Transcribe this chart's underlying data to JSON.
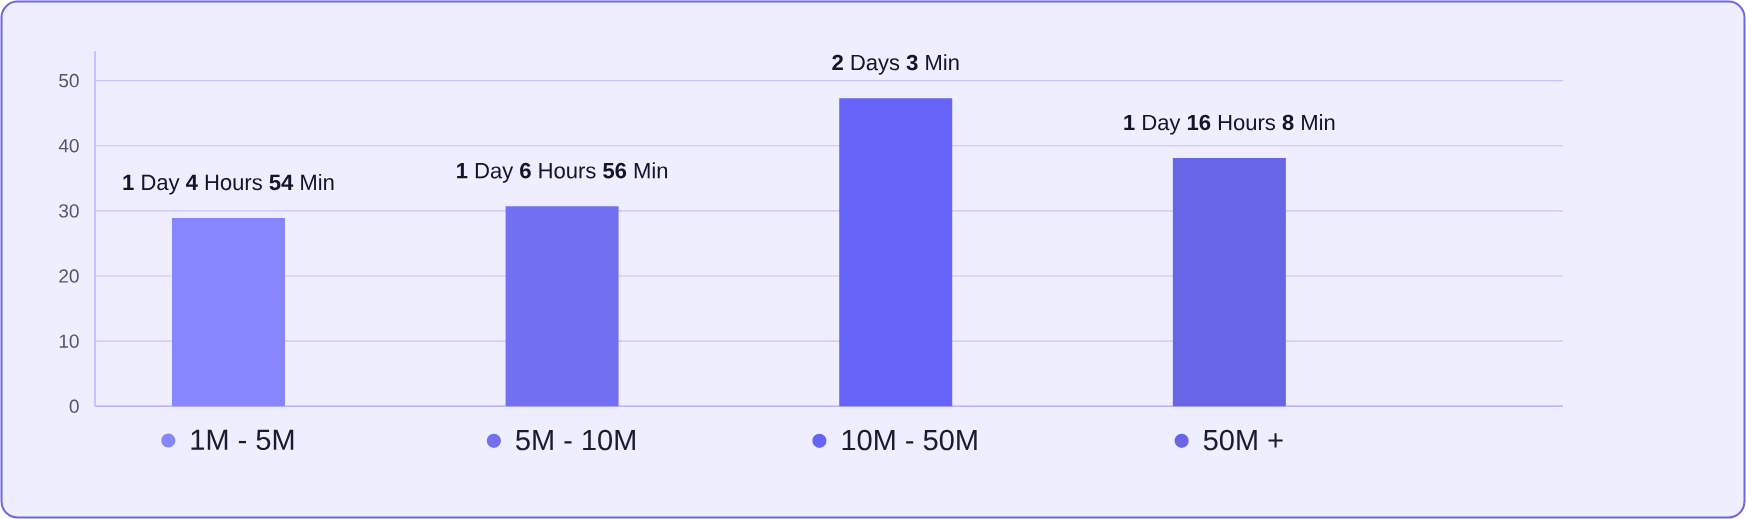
{
  "chart_data": {
    "type": "bar",
    "categories": [
      "1M - 5M",
      "5M - 10M",
      "10M - 50M",
      "50M +"
    ],
    "values": [
      28.9,
      30.7,
      47.3,
      38.1
    ],
    "colors": [
      "#8886fe",
      "#7270f0",
      "#6664f8",
      "#6866e6"
    ],
    "ylim": [
      0,
      54.5
    ],
    "yticks": [
      0,
      10,
      20,
      30,
      40,
      50
    ],
    "grid": "y",
    "value_labels": [
      "**1** Day **4** Hours **54** Min",
      "**1** Day **6** Hours **56** Min",
      "**2** Days **3** Min",
      "**1** Day **16** Hours **8** Min"
    ]
  }
}
